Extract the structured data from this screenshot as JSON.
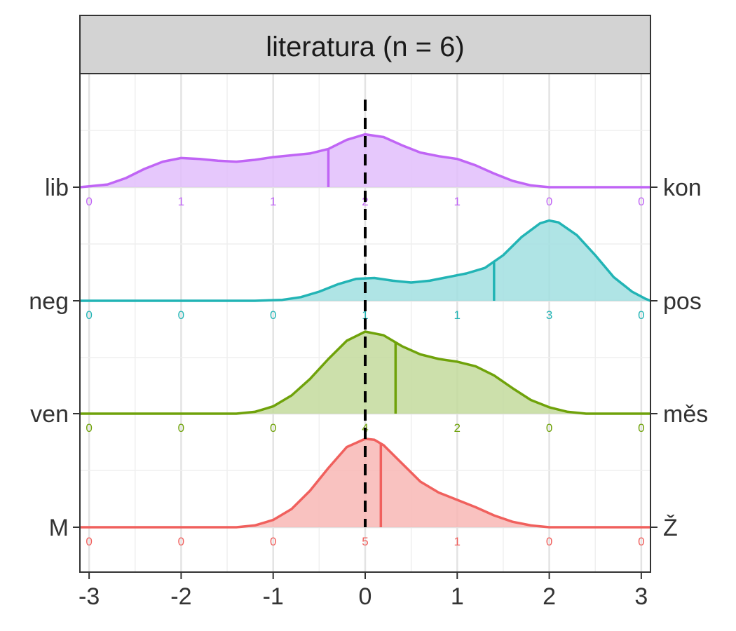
{
  "chart_data": {
    "type": "ridgeline",
    "title": "literatura (n = 6)",
    "xlabel": "",
    "ylabel": "",
    "xlim": [
      -3.1,
      3.1
    ],
    "x_ticks": [
      -3,
      -2,
      -1,
      0,
      1,
      2,
      3
    ],
    "x_tick_labels": [
      "-3",
      "-2",
      "-1",
      "0",
      "1",
      "2",
      "3"
    ],
    "reference_line_x": 0,
    "grid": true,
    "legend": "none",
    "count_positions": [
      -3,
      -2,
      -1,
      0,
      1,
      2,
      3
    ],
    "series": [
      {
        "left_label": "M",
        "right_label": "Ž",
        "color": "#F0605D",
        "fill": "#F8B7B5",
        "counts": [
          0,
          0,
          0,
          5,
          1,
          0,
          0
        ],
        "count_labels": [
          "0",
          "0",
          "0",
          "5",
          "1",
          "0",
          "0"
        ],
        "mean": 0.17,
        "density": [
          [
            -3.1,
            0
          ],
          [
            -1.4,
            0
          ],
          [
            -1.2,
            0.02
          ],
          [
            -1.0,
            0.08
          ],
          [
            -0.8,
            0.2
          ],
          [
            -0.6,
            0.4
          ],
          [
            -0.4,
            0.65
          ],
          [
            -0.2,
            0.88
          ],
          [
            0,
            0.97
          ],
          [
            0.1,
            0.96
          ],
          [
            0.2,
            0.9
          ],
          [
            0.4,
            0.7
          ],
          [
            0.6,
            0.5
          ],
          [
            0.8,
            0.38
          ],
          [
            1.0,
            0.3
          ],
          [
            1.2,
            0.22
          ],
          [
            1.4,
            0.13
          ],
          [
            1.6,
            0.06
          ],
          [
            1.8,
            0.02
          ],
          [
            2.0,
            0
          ],
          [
            3.1,
            0
          ]
        ]
      },
      {
        "left_label": "ven",
        "right_label": "měs",
        "color": "#6FA20A",
        "fill": "#C3DA9C",
        "counts": [
          0,
          0,
          0,
          4,
          2,
          0,
          0
        ],
        "count_labels": [
          "0",
          "0",
          "0",
          "4",
          "2",
          "0",
          "0"
        ],
        "mean": 0.33,
        "density": [
          [
            -3.1,
            0
          ],
          [
            -1.4,
            0
          ],
          [
            -1.2,
            0.02
          ],
          [
            -1.0,
            0.08
          ],
          [
            -0.8,
            0.2
          ],
          [
            -0.6,
            0.38
          ],
          [
            -0.4,
            0.6
          ],
          [
            -0.2,
            0.8
          ],
          [
            0,
            0.9
          ],
          [
            0.2,
            0.86
          ],
          [
            0.4,
            0.74
          ],
          [
            0.6,
            0.65
          ],
          [
            0.8,
            0.6
          ],
          [
            1.0,
            0.57
          ],
          [
            1.2,
            0.52
          ],
          [
            1.4,
            0.42
          ],
          [
            1.6,
            0.28
          ],
          [
            1.8,
            0.15
          ],
          [
            2.0,
            0.07
          ],
          [
            2.2,
            0.02
          ],
          [
            2.4,
            0
          ],
          [
            3.1,
            0
          ]
        ]
      },
      {
        "left_label": "neg",
        "right_label": "pos",
        "color": "#22B4B5",
        "fill": "#A1DFE0",
        "counts": [
          0,
          0,
          0,
          1,
          1,
          3,
          0
        ],
        "count_labels": [
          "0",
          "0",
          "0",
          "1",
          "1",
          "3",
          "0"
        ],
        "mean": 1.4,
        "density": [
          [
            -3.1,
            0
          ],
          [
            -1.2,
            0
          ],
          [
            -0.9,
            0.01
          ],
          [
            -0.7,
            0.04
          ],
          [
            -0.5,
            0.1
          ],
          [
            -0.3,
            0.18
          ],
          [
            -0.1,
            0.24
          ],
          [
            0.1,
            0.25
          ],
          [
            0.3,
            0.22
          ],
          [
            0.5,
            0.2
          ],
          [
            0.7,
            0.22
          ],
          [
            0.9,
            0.26
          ],
          [
            1.1,
            0.3
          ],
          [
            1.3,
            0.36
          ],
          [
            1.5,
            0.5
          ],
          [
            1.7,
            0.7
          ],
          [
            1.9,
            0.85
          ],
          [
            2.0,
            0.88
          ],
          [
            2.1,
            0.86
          ],
          [
            2.3,
            0.72
          ],
          [
            2.5,
            0.5
          ],
          [
            2.7,
            0.26
          ],
          [
            2.9,
            0.1
          ],
          [
            3.05,
            0.02
          ],
          [
            3.1,
            0
          ]
        ]
      },
      {
        "left_label": "lib",
        "right_label": "kon",
        "color": "#C065F5",
        "fill": "#E2BEFB",
        "counts": [
          0,
          1,
          1,
          2,
          1,
          0,
          0
        ],
        "count_labels": [
          "0",
          "1",
          "1",
          "2",
          "1",
          "0",
          "0"
        ],
        "mean": -0.4,
        "density": [
          [
            -3.1,
            0
          ],
          [
            -3.0,
            0.01
          ],
          [
            -2.8,
            0.03
          ],
          [
            -2.6,
            0.1
          ],
          [
            -2.4,
            0.2
          ],
          [
            -2.2,
            0.28
          ],
          [
            -2.0,
            0.32
          ],
          [
            -1.8,
            0.31
          ],
          [
            -1.6,
            0.29
          ],
          [
            -1.4,
            0.28
          ],
          [
            -1.2,
            0.3
          ],
          [
            -1.0,
            0.33
          ],
          [
            -0.8,
            0.35
          ],
          [
            -0.6,
            0.37
          ],
          [
            -0.4,
            0.42
          ],
          [
            -0.2,
            0.52
          ],
          [
            0,
            0.58
          ],
          [
            0.2,
            0.55
          ],
          [
            0.4,
            0.46
          ],
          [
            0.6,
            0.38
          ],
          [
            0.8,
            0.34
          ],
          [
            1.0,
            0.31
          ],
          [
            1.2,
            0.24
          ],
          [
            1.4,
            0.15
          ],
          [
            1.6,
            0.07
          ],
          [
            1.8,
            0.02
          ],
          [
            2.0,
            0
          ],
          [
            3.1,
            0
          ]
        ]
      }
    ]
  }
}
